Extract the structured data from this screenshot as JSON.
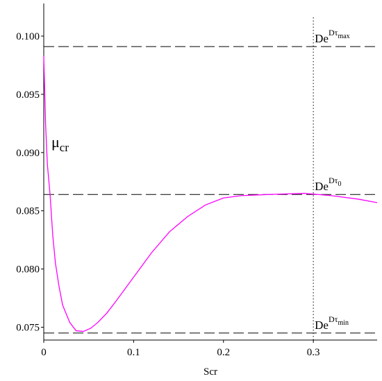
{
  "chart_data": {
    "type": "line",
    "xlabel": "Scr",
    "x": [
      0,
      0.002,
      0.004,
      0.007,
      0.01,
      0.013,
      0.017,
      0.021,
      0.029,
      0.036,
      0.044,
      0.052,
      0.06,
      0.07,
      0.08,
      0.1,
      0.12,
      0.14,
      0.16,
      0.18,
      0.2,
      0.22,
      0.25,
      0.29,
      0.32,
      0.35,
      0.371
    ],
    "series": [
      {
        "color": "#ff00ff",
        "values": [
          0.0983,
          0.0925,
          0.089,
          0.0864,
          0.0829,
          0.0805,
          0.0785,
          0.0769,
          0.0754,
          0.0747,
          0.07464,
          0.0749,
          0.0754,
          0.0762,
          0.0772,
          0.0793,
          0.0814,
          0.0832,
          0.0845,
          0.0855,
          0.0861,
          0.0863,
          0.0864,
          0.0865,
          0.0863,
          0.086,
          0.0857
        ]
      }
    ],
    "series_label": {
      "base": "μ",
      "sub": "cr"
    },
    "hlines": [
      0.0991,
      0.0864,
      0.0745
    ],
    "hline_labels": [
      {
        "base": "De",
        "sup": "Dτ",
        "sub": "max"
      },
      {
        "base": "De",
        "sup": "Dτ",
        "sub": "0"
      },
      {
        "base": "De",
        "sup": "Dτ",
        "sub": "min"
      }
    ],
    "vlines": [
      0.3
    ],
    "xlim": [
      0,
      0.371
    ],
    "ylim": [
      0.0739,
      0.1028
    ],
    "xticks": [
      0,
      0.1,
      0.2,
      0.3
    ],
    "yticks": [
      {
        "value": 0.075,
        "label": "0.075"
      },
      {
        "value": 0.08,
        "label": "0.080"
      },
      0.085,
      {
        "value": 0.09,
        "label": "0.090"
      },
      0.095,
      {
        "value": 0.1,
        "label": "0.100"
      }
    ]
  }
}
